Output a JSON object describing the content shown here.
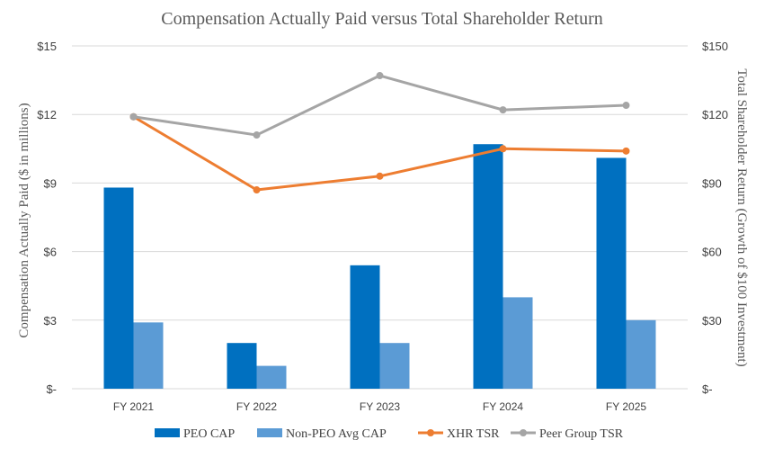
{
  "chart_data": {
    "type": "bar",
    "title": "Compensation Actually Paid versus Total Shareholder Return",
    "categories": [
      "FY 2021",
      "FY 2022",
      "FY 2023",
      "FY 2024",
      "FY 2025"
    ],
    "ylabel": "Compensation Actually Paid ($ in millions)",
    "y2label": "Total Shareholder Return (Growth of $100 Investment)",
    "ylim": [
      0,
      15
    ],
    "y2lim": [
      0,
      150
    ],
    "yticks": [
      "$-",
      "$3",
      "$6",
      "$9",
      "$12",
      "$15"
    ],
    "y2ticks": [
      "$-",
      "$30",
      "$60",
      "$90",
      "$120",
      "$150"
    ],
    "gridlines": true,
    "legend_position": "bottom",
    "series": [
      {
        "name": "PEO CAP",
        "type": "bar",
        "axis": "left",
        "color": "#0070C0",
        "values": [
          8.8,
          2.0,
          5.4,
          10.7,
          10.1
        ]
      },
      {
        "name": "Non-PEO Avg CAP",
        "type": "bar",
        "axis": "left",
        "color": "#5B9BD5",
        "values": [
          2.9,
          1.0,
          2.0,
          4.0,
          3.0
        ]
      },
      {
        "name": "XHR TSR",
        "type": "line",
        "axis": "right",
        "color": "#ED7D31",
        "values": [
          119,
          87,
          93,
          105,
          104
        ]
      },
      {
        "name": "Peer Group TSR",
        "type": "line",
        "axis": "right",
        "color": "#A5A5A5",
        "values": [
          119,
          111,
          137,
          122,
          124
        ]
      }
    ]
  }
}
